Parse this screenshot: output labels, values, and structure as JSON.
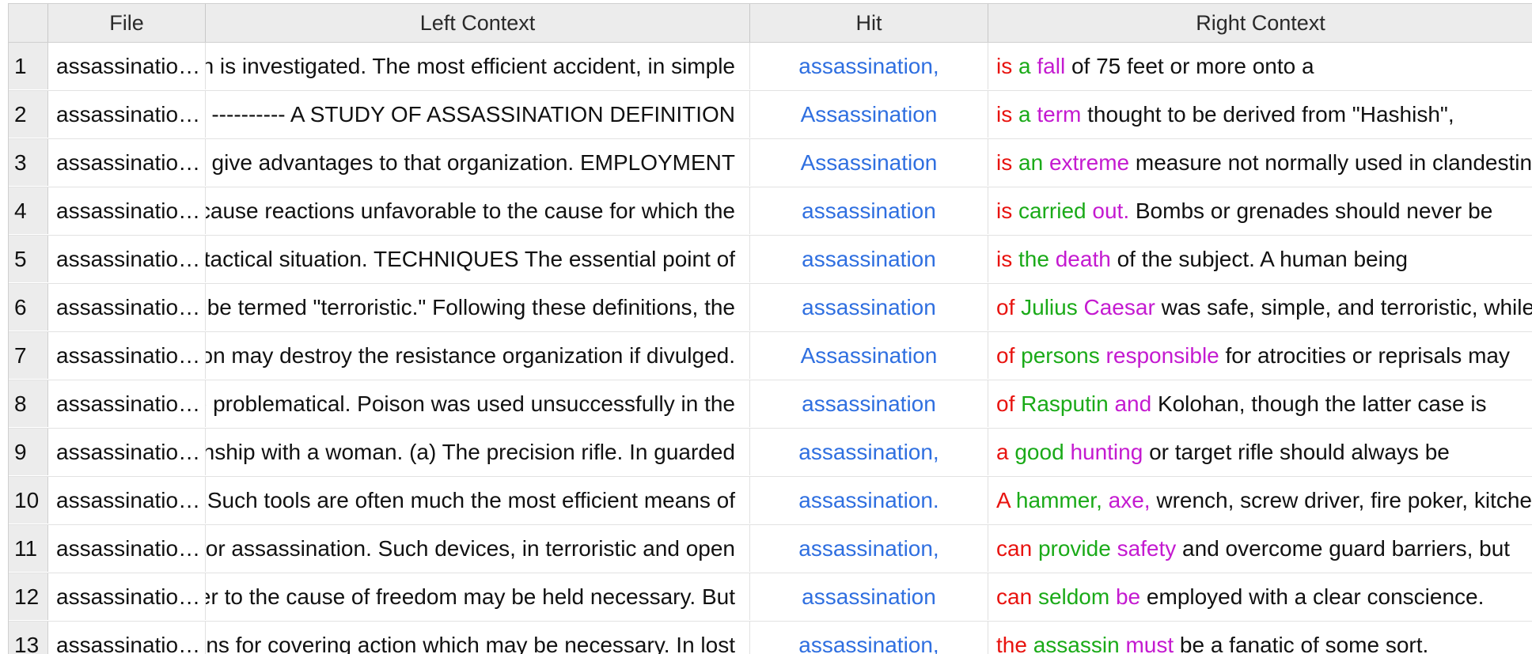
{
  "columns": {
    "num": "",
    "file": "File",
    "left": "Left Context",
    "hit": "Hit",
    "right": "Right Context"
  },
  "colors": {
    "hit": "#2f6fe0",
    "right_word1": "#e8130f",
    "right_word2": "#1aaa18",
    "right_word3": "#c41ad0"
  },
  "rows": [
    {
      "n": "1",
      "file": "assassination.txt",
      "left": "ssination is investigated. The most efficient accident, in simple",
      "hit": "assassination,",
      "w1": "is",
      "w2": "a",
      "w3": "fall",
      "rest": "of 75 feet or more onto a"
    },
    {
      "n": "2",
      "file": "assassination.txt",
      "left": "---------- A STUDY OF ASSASSINATION DEFINITION",
      "hit": "Assassination",
      "w1": "is",
      "w2": "a",
      "w3": "term",
      "rest": "thought to be derived from \"Hashish\","
    },
    {
      "n": "3",
      "file": "assassination.txt",
      "left": "ch could give advantages to that organization. EMPLOYMENT",
      "hit": "Assassination",
      "w1": "is",
      "w2": "an",
      "w3": "extreme",
      "rest": "measure not normally used in clandestine"
    },
    {
      "n": "4",
      "file": "assassination.txt",
      "left": "ought to cause reactions unfavorable to the cause for which the",
      "hit": "assassination",
      "w1": "is",
      "w2": "carried",
      "w3": "out.",
      "rest": "Bombs or grenades should never be"
    },
    {
      "n": "5",
      "file": "assassination.txt",
      "left": "e of the tactical situation. TECHNIQUES The essential point of",
      "hit": "assassination",
      "w1": "is",
      "w2": "the",
      "w3": "death",
      "rest": "of the subject. A human being"
    },
    {
      "n": "6",
      "file": "assassination.txt",
      "left": "ght be termed \"terroristic.\" Following these definitions, the",
      "hit": "assassination",
      "w1": "of",
      "w2": "Julius",
      "w3": "Caesar",
      "rest": "was safe, simple, and terroristic, while"
    },
    {
      "n": "7",
      "file": "assassination.txt",
      "left": "tion may destroy the resistance organization if divulged.",
      "hit": "Assassination",
      "w1": "of",
      "w2": "persons",
      "w3": "responsible",
      "rest": "for atrocities or reprisals may"
    },
    {
      "n": "8",
      "file": "assassination.txt",
      "left": "are problematical. Poison was used unsuccessfully in the",
      "hit": "assassination",
      "w1": "of",
      "w2": "Rasputin",
      "w3": "and",
      "rest": "Kolohan, though the latter case is"
    },
    {
      "n": "9",
      "file": "assassination.txt",
      "left": "tionship with a woman. (a) The precision rifle. In guarded",
      "hit": "assassination,",
      "w1": "a",
      "w2": "good",
      "w3": "hunting",
      "rest": "or target rifle should always be"
    },
    {
      "n": "10",
      "file": "assassination.txt",
      "left": "d. Such tools are often much the most efficient means of",
      "hit": "assassination.",
      "w1": "A",
      "w2": "hammer,",
      "w3": "axe,",
      "rest": "wrench, screw driver, fire poker, kitchen"
    },
    {
      "n": "11",
      "file": "assassination.txt",
      "left": "ed for assassination. Such devices, in terroristic and open",
      "hit": "assassination,",
      "w1": "can",
      "w2": "provide",
      "w3": "safety",
      "rest": "and overcome guard barriers, but"
    },
    {
      "n": "12",
      "file": "assassination.txt",
      "left": "murder to the cause of freedom may be held necessary. But",
      "hit": "assassination",
      "w1": "can",
      "w2": "seldom",
      "w3": "be",
      "rest": "employed with a clear conscience."
    },
    {
      "n": "13",
      "file": "assassination.txt",
      "left": "tions for covering action which may be necessary. In lost",
      "hit": "assassination,",
      "w1": "the",
      "w2": "assassin",
      "w3": "must",
      "rest": "be a fanatic of some sort."
    }
  ]
}
